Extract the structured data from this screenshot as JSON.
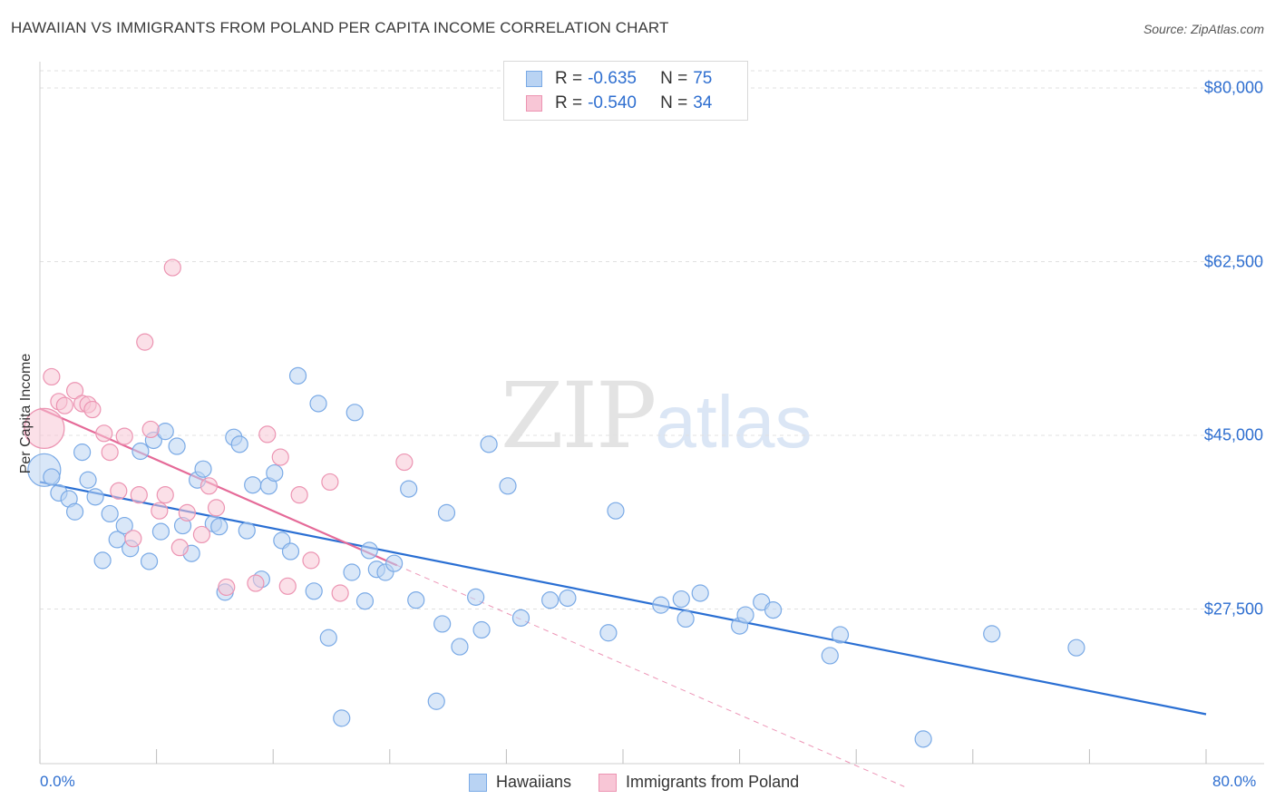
{
  "title": "HAWAIIAN VS IMMIGRANTS FROM POLAND PER CAPITA INCOME CORRELATION CHART",
  "source": "Source: ZipAtlas.com",
  "watermark": {
    "zip": "ZIP",
    "atlas": "atlas"
  },
  "legend": {
    "rows": [
      {
        "r_label": "R =",
        "r_value": "-0.635",
        "n_label": "N =",
        "n_value": "75"
      },
      {
        "r_label": "R =",
        "r_value": "-0.540",
        "n_label": "N =",
        "n_value": "34"
      }
    ]
  },
  "bottom_legend": [
    "Hawaiians",
    "Immigrants from Poland"
  ],
  "colors": {
    "blue_fill": "#b9d3f3",
    "blue_stroke": "#7aaae6",
    "blue_line": "#2a6fd3",
    "pink_fill": "#f8c6d6",
    "pink_stroke": "#ec94b2",
    "pink_line": "#e56a98",
    "grid": "#e0e0e0",
    "tick_text": "#2f6fd0"
  },
  "chart_data": {
    "type": "scatter",
    "title": "HAWAIIAN VS IMMIGRANTS FROM POLAND PER CAPITA INCOME CORRELATION CHART",
    "xlabel": "",
    "ylabel": "Per Capita Income",
    "xlim": [
      0,
      80
    ],
    "ylim": [
      10000,
      83000
    ],
    "x_tick_labels": [
      "0.0%",
      "80.0%"
    ],
    "y_ticks": [
      {
        "value": 80000,
        "label": "$80,000"
      },
      {
        "value": 62500,
        "label": "$62,500"
      },
      {
        "value": 45000,
        "label": "$45,000"
      },
      {
        "value": 27500,
        "label": "$27,500"
      }
    ],
    "series": [
      {
        "name": "Hawaiians",
        "color": "blue",
        "points": [
          [
            0.3,
            41500,
            18
          ],
          [
            0.8,
            40800,
            9
          ],
          [
            1.3,
            39200,
            9
          ],
          [
            2.0,
            38600,
            9
          ],
          [
            2.4,
            37300,
            9
          ],
          [
            2.9,
            43300,
            9
          ],
          [
            3.3,
            40500,
            9
          ],
          [
            3.8,
            38800,
            9
          ],
          [
            4.3,
            32400,
            9
          ],
          [
            4.8,
            37100,
            9
          ],
          [
            5.3,
            34500,
            9
          ],
          [
            5.8,
            35900,
            9
          ],
          [
            6.2,
            33600,
            9
          ],
          [
            6.9,
            43400,
            9
          ],
          [
            7.5,
            32300,
            9
          ],
          [
            7.8,
            44500,
            9
          ],
          [
            8.3,
            35300,
            9
          ],
          [
            8.6,
            45400,
            9
          ],
          [
            9.4,
            43900,
            9
          ],
          [
            9.8,
            35900,
            9
          ],
          [
            10.4,
            33100,
            9
          ],
          [
            10.8,
            40500,
            9
          ],
          [
            11.2,
            41600,
            9
          ],
          [
            11.9,
            36100,
            9
          ],
          [
            12.3,
            35800,
            9
          ],
          [
            12.7,
            29200,
            9
          ],
          [
            13.3,
            44800,
            9
          ],
          [
            13.7,
            44100,
            9
          ],
          [
            14.2,
            35400,
            9
          ],
          [
            14.6,
            40000,
            9
          ],
          [
            15.2,
            30500,
            9
          ],
          [
            15.7,
            39900,
            9
          ],
          [
            16.1,
            41200,
            9
          ],
          [
            16.6,
            34400,
            9
          ],
          [
            17.2,
            33300,
            9
          ],
          [
            17.7,
            51000,
            9
          ],
          [
            18.8,
            29300,
            9
          ],
          [
            19.1,
            48200,
            9
          ],
          [
            19.8,
            24600,
            9
          ],
          [
            20.7,
            16500,
            9
          ],
          [
            21.4,
            31200,
            9
          ],
          [
            21.6,
            47300,
            9
          ],
          [
            22.3,
            28300,
            9
          ],
          [
            22.6,
            33400,
            9
          ],
          [
            23.1,
            31500,
            9
          ],
          [
            23.7,
            31200,
            9
          ],
          [
            24.3,
            32100,
            9
          ],
          [
            25.3,
            39600,
            9
          ],
          [
            25.8,
            28400,
            9
          ],
          [
            27.2,
            18200,
            9
          ],
          [
            27.6,
            26000,
            9
          ],
          [
            27.9,
            37200,
            9
          ],
          [
            28.8,
            23700,
            9
          ],
          [
            29.9,
            28700,
            9
          ],
          [
            30.3,
            25400,
            9
          ],
          [
            30.8,
            44100,
            9
          ],
          [
            32.1,
            39900,
            9
          ],
          [
            33.0,
            26600,
            9
          ],
          [
            35.0,
            28400,
            9
          ],
          [
            36.2,
            28600,
            9
          ],
          [
            39.0,
            25100,
            9
          ],
          [
            39.5,
            37400,
            9
          ],
          [
            42.6,
            27900,
            9
          ],
          [
            44.0,
            28500,
            9
          ],
          [
            44.3,
            26500,
            9
          ],
          [
            45.3,
            29100,
            9
          ],
          [
            48.0,
            25800,
            9
          ],
          [
            48.4,
            26900,
            9
          ],
          [
            49.5,
            28200,
            9
          ],
          [
            50.3,
            27400,
            9
          ],
          [
            54.2,
            22800,
            9
          ],
          [
            54.9,
            24900,
            9
          ],
          [
            60.6,
            14400,
            9
          ],
          [
            65.3,
            25000,
            9
          ],
          [
            71.1,
            23600,
            9
          ]
        ],
        "trendline": {
          "x": [
            0,
            80
          ],
          "y": [
            40300,
            16900
          ]
        }
      },
      {
        "name": "Immigrants from Poland",
        "color": "pink",
        "points": [
          [
            0.3,
            45700,
            22
          ],
          [
            0.8,
            50900,
            9
          ],
          [
            1.3,
            48400,
            9
          ],
          [
            1.7,
            48000,
            9
          ],
          [
            2.4,
            49500,
            9
          ],
          [
            2.9,
            48200,
            9
          ],
          [
            3.3,
            48100,
            9
          ],
          [
            3.6,
            47600,
            9
          ],
          [
            4.4,
            45200,
            9
          ],
          [
            4.8,
            43300,
            9
          ],
          [
            5.4,
            39400,
            9
          ],
          [
            5.8,
            44900,
            9
          ],
          [
            6.4,
            34600,
            9
          ],
          [
            6.8,
            39000,
            9
          ],
          [
            7.2,
            54400,
            9
          ],
          [
            7.6,
            45600,
            9
          ],
          [
            8.2,
            37400,
            9
          ],
          [
            8.6,
            39000,
            9
          ],
          [
            9.1,
            61900,
            9
          ],
          [
            9.6,
            33700,
            9
          ],
          [
            10.1,
            37200,
            9
          ],
          [
            11.1,
            35000,
            9
          ],
          [
            11.6,
            39900,
            9
          ],
          [
            12.1,
            37700,
            9
          ],
          [
            12.8,
            29700,
            9
          ],
          [
            14.8,
            30100,
            9
          ],
          [
            15.6,
            45100,
            9
          ],
          [
            16.5,
            42800,
            9
          ],
          [
            17.0,
            29800,
            9
          ],
          [
            17.8,
            39000,
            9
          ],
          [
            18.6,
            32400,
            9
          ],
          [
            19.9,
            40300,
            9
          ],
          [
            20.6,
            29100,
            9
          ],
          [
            25.0,
            42300,
            9
          ]
        ],
        "trendline": {
          "x": [
            0,
            24.5
          ],
          "y": [
            47700,
            31900
          ]
        },
        "trendline_extension": {
          "x": [
            24.5,
            59.3
          ],
          "y": [
            31900,
            9600
          ]
        }
      }
    ]
  }
}
